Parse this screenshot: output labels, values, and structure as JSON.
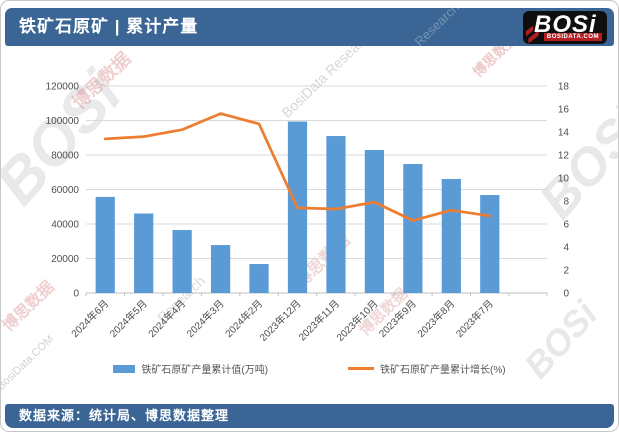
{
  "header": {
    "title": "铁矿石原矿 | 累计产量",
    "logo": {
      "text": "BOSi",
      "subtext": "BOSIDATA.COM"
    }
  },
  "footer": {
    "source_label": "数据来源：统计局、博思数据整理"
  },
  "watermarks": {
    "brand_short": "BOSi",
    "brand_cn": "博思数据",
    "brand_en": "BosiData Research",
    "brand_en_short": "Research",
    "site": "BosiData.COM"
  },
  "colors": {
    "brand_blue": "#3a6594",
    "logo_red": "#b41f24",
    "bar": "#5b9bd5",
    "line": "#ed7d31",
    "grid": "#d9d9d9",
    "axis": "#bfbfbf",
    "label": "#4d4d4d"
  },
  "chart_data": {
    "type": "combo",
    "title": "铁矿石原矿 | 累计产量",
    "categories": [
      "2024年6月",
      "2024年5月",
      "2024年4月",
      "2024年3月",
      "2024年2月",
      "2023年12月",
      "2023年11月",
      "2023年10月",
      "2023年9月",
      "2023年8月",
      "2023年7月"
    ],
    "series": [
      {
        "name": "铁矿石原矿产量累计值(万吨)",
        "type": "bar",
        "axis": "left",
        "color": "#5b9bd5",
        "values": [
          55700,
          46100,
          36500,
          27800,
          16800,
          99400,
          91000,
          82900,
          74800,
          66100,
          56800
        ]
      },
      {
        "name": "铁矿石原矿产量累计增长(%)",
        "type": "line",
        "axis": "right",
        "color": "#ed7d31",
        "values": [
          13.4,
          13.6,
          14.2,
          15.6,
          14.7,
          7.4,
          7.3,
          7.9,
          6.3,
          7.2,
          6.7
        ]
      }
    ],
    "left_axis": {
      "min": 0,
      "max": 120000,
      "step": 20000
    },
    "right_axis": {
      "min": 0,
      "max": 18,
      "step": 2
    },
    "grid": true,
    "legend_position": "bottom",
    "x_labels_rotated": true
  }
}
